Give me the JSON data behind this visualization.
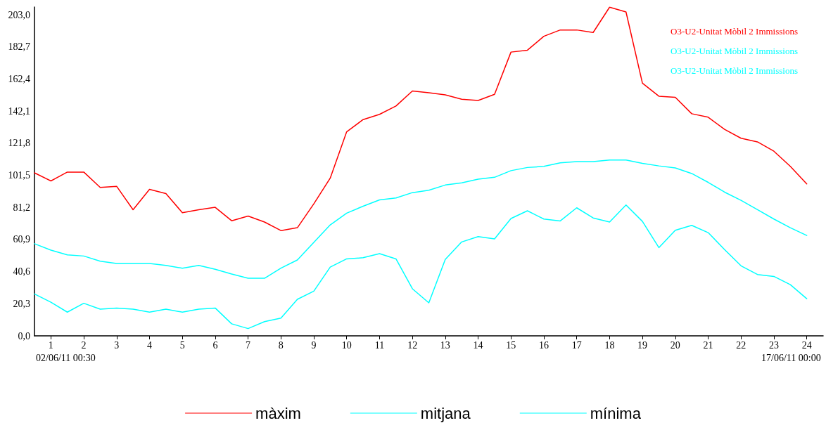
{
  "chart_data": {
    "type": "line",
    "x": [
      0.5,
      1,
      1.5,
      2,
      2.5,
      3,
      3.5,
      4,
      4.5,
      5,
      5.5,
      6,
      6.5,
      7,
      7.5,
      8,
      8.5,
      9,
      9.5,
      10,
      10.5,
      11,
      11.5,
      12,
      12.5,
      13,
      13.5,
      14,
      14.5,
      15,
      15.5,
      16,
      16.5,
      17,
      17.5,
      18,
      18.5,
      19,
      19.5,
      20,
      20.5,
      21,
      21.5,
      22,
      22.5,
      23,
      23.5,
      24
    ],
    "series": [
      {
        "name": "màxim",
        "color": "#ff0000",
        "values": [
          103.1,
          98.0,
          103.6,
          103.6,
          93.9,
          94.6,
          79.8,
          92.7,
          90.0,
          77.9,
          79.8,
          81.3,
          72.8,
          75.8,
          72.0,
          66.6,
          68.4,
          83.5,
          99.8,
          129.1,
          136.8,
          140.1,
          145.4,
          154.9,
          153.8,
          152.4,
          149.7,
          148.9,
          152.8,
          179.5,
          180.7,
          189.5,
          193.5,
          193.5,
          191.9,
          207.9,
          204.9,
          159.8,
          151.6,
          150.9,
          140.5,
          138.3,
          130.6,
          125.0,
          122.7,
          116.8,
          107.2,
          96.1
        ]
      },
      {
        "name": "mitjana",
        "color": "#00ffff",
        "values": [
          58.3,
          54.2,
          51.2,
          50.5,
          47.2,
          45.8,
          45.8,
          45.8,
          44.6,
          42.8,
          44.6,
          42.1,
          39.1,
          36.4,
          36.4,
          42.8,
          48.0,
          59.1,
          70.2,
          77.6,
          82.0,
          86.0,
          87.2,
          90.6,
          92.1,
          95.4,
          96.8,
          99.1,
          100.3,
          104.5,
          106.5,
          107.2,
          109.4,
          110.2,
          110.2,
          111.2,
          111.2,
          109.1,
          107.5,
          106.2,
          102.7,
          97.1,
          90.9,
          85.7,
          79.8,
          73.9,
          68.4,
          63.5
        ]
      },
      {
        "name": "mínima",
        "color": "#00ffff",
        "values": [
          26.5,
          21.3,
          15.0,
          20.6,
          16.9,
          17.6,
          16.9,
          15.0,
          16.9,
          15.0,
          16.9,
          17.6,
          7.6,
          4.6,
          9.0,
          11.2,
          23.1,
          28.3,
          43.5,
          48.7,
          49.4,
          52.0,
          48.7,
          29.8,
          20.9,
          48.3,
          59.4,
          62.8,
          61.3,
          74.2,
          79.1,
          73.9,
          72.7,
          81.0,
          74.6,
          72.0,
          82.8,
          72.4,
          55.8,
          66.8,
          69.9,
          65.3,
          54.6,
          44.3,
          38.8,
          37.6,
          32.4,
          23.5
        ]
      }
    ],
    "xlim": [
      0.5,
      24.5
    ],
    "xticks": [
      1,
      2,
      3,
      4,
      5,
      6,
      7,
      8,
      9,
      10,
      11,
      12,
      13,
      14,
      15,
      16,
      17,
      18,
      19,
      20,
      21,
      22,
      23,
      24
    ],
    "ylim": [
      0,
      208
    ],
    "yticks": [
      {
        "value": 0,
        "label": "0,0"
      },
      {
        "value": 20.3,
        "label": "20,3"
      },
      {
        "value": 40.6,
        "label": "40,6"
      },
      {
        "value": 60.9,
        "label": "60,9"
      },
      {
        "value": 81.2,
        "label": "81,2"
      },
      {
        "value": 101.5,
        "label": "101,5"
      },
      {
        "value": 121.8,
        "label": "121,8"
      },
      {
        "value": 142.1,
        "label": "142,1"
      },
      {
        "value": 162.4,
        "label": "162,4"
      },
      {
        "value": 182.7,
        "label": "182,7"
      },
      {
        "value": 203,
        "label": "203,0"
      }
    ],
    "annotations": [
      "O3-U2-Unitat Mòbil 2 Immissions",
      "O3-U2-Unitat Mòbil 2 Immissions",
      "O3-U2-Unitat Mòbil 2 Immissions",
      "02/06/11 00:30",
      "17/06/11 00:00"
    ],
    "grid": false,
    "legend": "bottom",
    "marker": "none",
    "line_style": "solid"
  }
}
